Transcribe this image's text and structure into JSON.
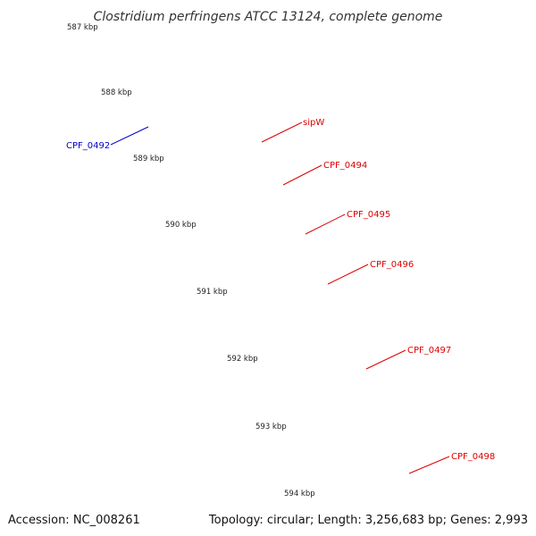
{
  "title": "Clostridium perfringens ATCC 13124, complete genome",
  "footer": {
    "accession": "Accession: NC_008261",
    "stats": "Topology: circular; Length: 3,256,683 bp; Genes: 2,993"
  },
  "ticks": [
    "587 kbp",
    "588 kbp",
    "589 kbp",
    "590 kbp",
    "591 kbp",
    "592 kbp",
    "593 kbp",
    "594 kbp"
  ],
  "genes": [
    {
      "label": "CPF_0492",
      "color": "#0000cc"
    },
    {
      "label": "sipW",
      "color": "#dd0000"
    },
    {
      "label": "CPF_0494",
      "color": "#dd0000"
    },
    {
      "label": "CPF_0495",
      "color": "#dd0000"
    },
    {
      "label": "CPF_0496",
      "color": "#dd0000"
    },
    {
      "label": "CPF_0497",
      "color": "#dd0000"
    },
    {
      "label": "CPF_0498",
      "color": "#dd0000"
    }
  ],
  "colors": {
    "cds_forward": "#ff0000",
    "cds_other": "#0000ff",
    "grey_feature": "#666666",
    "cyan_feature": "#2fd6d6",
    "lime_feature": "#aaff33",
    "orange_feature": "#ff9900",
    "green_feature": "#33dd33",
    "backbone": "#888888",
    "gc_dots": "#1a7a1a"
  }
}
